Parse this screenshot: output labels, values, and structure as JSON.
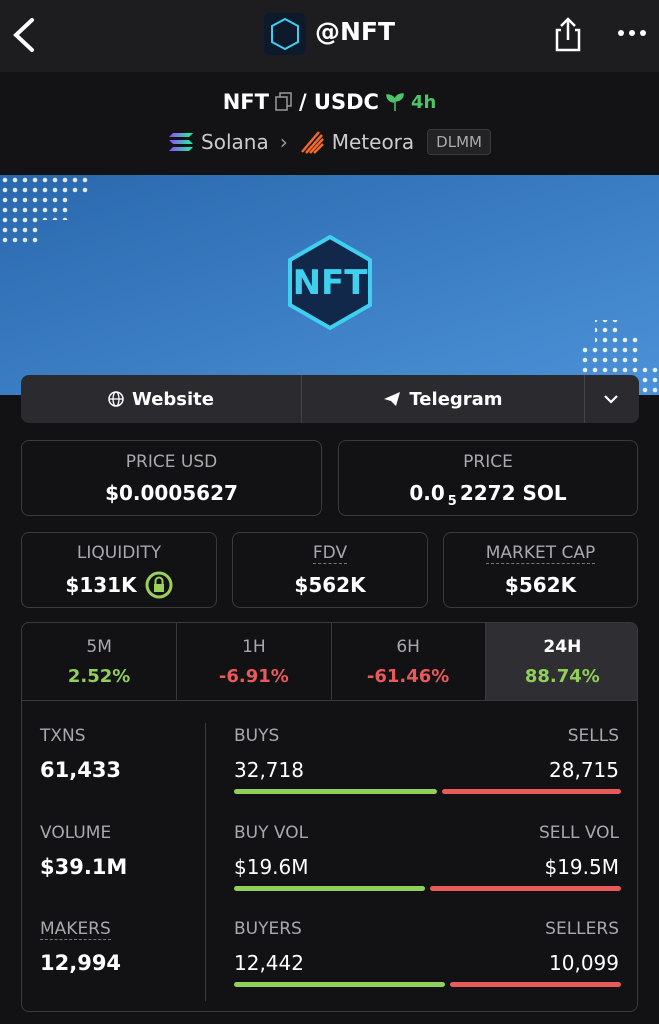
{
  "nav": {
    "title": "@NFT"
  },
  "pair": {
    "base": "NFT",
    "quote": "/ USDC",
    "age": "4h",
    "chain": "Solana",
    "dex": "Meteora",
    "badge": "DLMM"
  },
  "banner": {
    "logo_text": "NFT"
  },
  "links": [
    "Website",
    "Telegram"
  ],
  "prices": [
    {
      "label": "PRICE USD",
      "value": "$0.0005627"
    },
    {
      "label": "PRICE",
      "value_prefix": "0.0",
      "value_sub": "5",
      "value_suffix": "2272 SOL"
    }
  ],
  "stats": [
    {
      "label": "LIQUIDITY",
      "value": "$131K"
    },
    {
      "label": "FDV",
      "value": "$562K"
    },
    {
      "label": "MARKET CAP",
      "value": "$562K"
    }
  ],
  "timeframes": [
    {
      "label": "5M",
      "change": "2.52%"
    },
    {
      "label": "1H",
      "change": "-6.91%"
    },
    {
      "label": "6H",
      "change": "-61.46%"
    },
    {
      "label": "24H",
      "change": "88.74%"
    }
  ],
  "active_timeframe": 3,
  "metrics": [
    {
      "label": "TXNS",
      "value": "61,433",
      "left_label": "BUYS",
      "left": {
        "value": 32718,
        "label": "32,718"
      },
      "right_label": "SELLS",
      "right": {
        "value": 28715,
        "label": "28,715"
      }
    },
    {
      "label": "VOLUME",
      "value": "$39.1M",
      "left_label": "BUY VOL",
      "left": {
        "value": 19.6,
        "label": "$19.6M"
      },
      "right_label": "SELL VOL",
      "right": {
        "value": 19.5,
        "label": "$19.5M"
      }
    },
    {
      "label": "MAKERS",
      "value": "12,994",
      "left_label": "BUYERS",
      "left": {
        "value": 12442,
        "label": "12,442"
      },
      "right_label": "SELLERS",
      "right": {
        "value": 10099,
        "label": "10,099"
      }
    }
  ]
}
